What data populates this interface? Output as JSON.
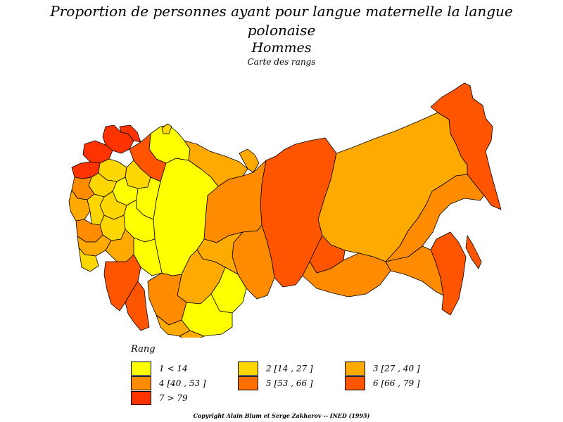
{
  "title": {
    "line1": "Proportion de personnes ayant pour langue maternelle la langue",
    "line2": "polonaise",
    "line3": "Hommes",
    "subtitle": "Carte des rangs"
  },
  "legend": {
    "title": "Rang",
    "items": [
      {
        "rank": 1,
        "label": "1  <  14",
        "color": "#ffff00"
      },
      {
        "rank": 2,
        "label": "2  [14 ,  27 ]",
        "color": "#ffd700"
      },
      {
        "rank": 3,
        "label": "3  [27 ,  40 ]",
        "color": "#ffaa00"
      },
      {
        "rank": 4,
        "label": "4  [40 ,  53 ]",
        "color": "#ff8c00"
      },
      {
        "rank": 5,
        "label": "5  [53 ,  66 ]",
        "color": "#ff6e00"
      },
      {
        "rank": 6,
        "label": "6  [66 ,  79 ]",
        "color": "#ff5500"
      },
      {
        "rank": 7,
        "label": "7  >  79",
        "color": "#ff3300"
      }
    ]
  },
  "copyright": "Copyright Alain Blum et Serge Zakharov  --  INED (1995)"
}
